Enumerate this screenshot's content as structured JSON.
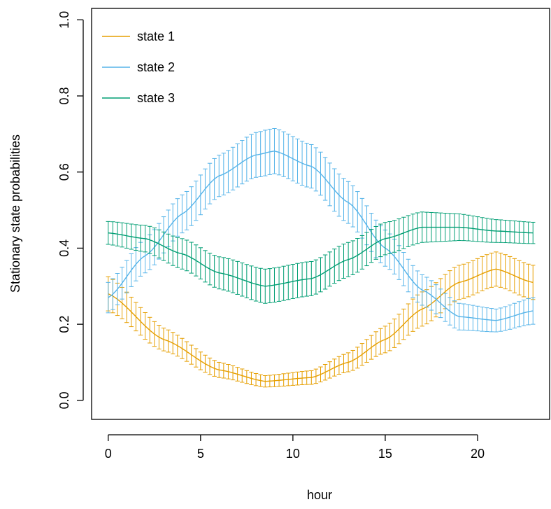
{
  "chart_data": {
    "type": "line",
    "title": "",
    "xlabel": "hour",
    "ylabel": "Stationary state probabilities",
    "xlim": [
      -0.9,
      23.9
    ],
    "ylim": [
      -0.05,
      1.03
    ],
    "x_ticks": [
      0,
      5,
      10,
      15,
      20
    ],
    "x_tick_labels": [
      "0",
      "5",
      "10",
      "15",
      "20"
    ],
    "y_ticks": [
      0.0,
      0.2,
      0.4,
      0.6,
      0.8,
      1.0
    ],
    "y_tick_labels": [
      "0.0",
      "0.2",
      "0.4",
      "0.6",
      "0.8",
      "1.0"
    ],
    "grid": false,
    "legend_position": "top-left",
    "error_bars": true,
    "x_start": 0,
    "x_end": 23,
    "x_step": 0.25,
    "series": [
      {
        "name": "state 1",
        "color": "#E69F00",
        "curve_x": [
          0,
          3,
          6,
          8.5,
          11,
          13,
          15,
          17,
          19,
          21,
          23
        ],
        "curve_y": [
          0.28,
          0.16,
          0.08,
          0.05,
          0.06,
          0.1,
          0.16,
          0.24,
          0.31,
          0.345,
          0.31
        ],
        "err_x": [
          0,
          3,
          6,
          8.5,
          11,
          13,
          15,
          17,
          19,
          21,
          23
        ],
        "err_half": [
          0.045,
          0.03,
          0.02,
          0.015,
          0.018,
          0.025,
          0.035,
          0.045,
          0.045,
          0.045,
          0.045
        ]
      },
      {
        "name": "state 2",
        "color": "#56B4E9",
        "curve_x": [
          0,
          2,
          4,
          6,
          8,
          9,
          11,
          13,
          15,
          17,
          19,
          21,
          23
        ],
        "curve_y": [
          0.27,
          0.38,
          0.49,
          0.59,
          0.645,
          0.655,
          0.615,
          0.52,
          0.4,
          0.29,
          0.22,
          0.21,
          0.235
        ],
        "err_x": [
          0,
          4,
          8.5,
          13,
          17,
          21,
          23
        ],
        "err_half": [
          0.04,
          0.05,
          0.06,
          0.055,
          0.04,
          0.03,
          0.035
        ]
      },
      {
        "name": "state 3",
        "color": "#009E73",
        "curve_x": [
          0,
          2,
          4,
          6,
          8.5,
          11,
          13,
          15,
          17,
          19,
          21,
          23
        ],
        "curve_y": [
          0.44,
          0.425,
          0.385,
          0.335,
          0.3,
          0.32,
          0.37,
          0.425,
          0.455,
          0.455,
          0.445,
          0.44
        ],
        "err_x": [
          0,
          4,
          8.5,
          13,
          17,
          21,
          23
        ],
        "err_half": [
          0.03,
          0.04,
          0.045,
          0.045,
          0.04,
          0.03,
          0.028
        ]
      }
    ]
  }
}
